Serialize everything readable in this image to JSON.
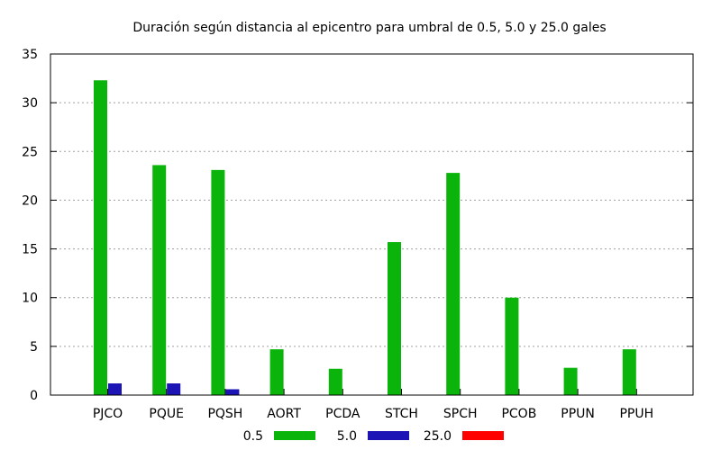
{
  "chart_data": {
    "type": "bar",
    "title": "Duración según distancia al epicentro para umbral de 0.5, 5.0 y 25.0 gales",
    "xlabel": "",
    "ylabel": "",
    "ylim": [
      0,
      35
    ],
    "yticks": [
      "0",
      "5",
      "10",
      "15",
      "20",
      "25",
      "30",
      "35"
    ],
    "grid": true,
    "legend_position": "bottom",
    "categories": [
      "PJCO",
      "PQUE",
      "PQSH",
      "AORT",
      "PCDA",
      "STCH",
      "SPCH",
      "PCOB",
      "PPUN",
      "PPUH"
    ],
    "series": [
      {
        "name": "0.5",
        "color": "#0ab40a",
        "values": [
          32.3,
          23.6,
          23.1,
          4.7,
          2.7,
          15.7,
          22.8,
          10.0,
          2.8,
          4.7
        ]
      },
      {
        "name": "5.0",
        "color": "#1c14b4",
        "values": [
          1.2,
          1.2,
          0.6,
          0,
          0,
          0,
          0,
          0,
          0,
          0
        ]
      },
      {
        "name": "25.0",
        "color": "#ff0000",
        "values": [
          0,
          0,
          0,
          0,
          0,
          0,
          0,
          0,
          0,
          0
        ]
      }
    ]
  }
}
